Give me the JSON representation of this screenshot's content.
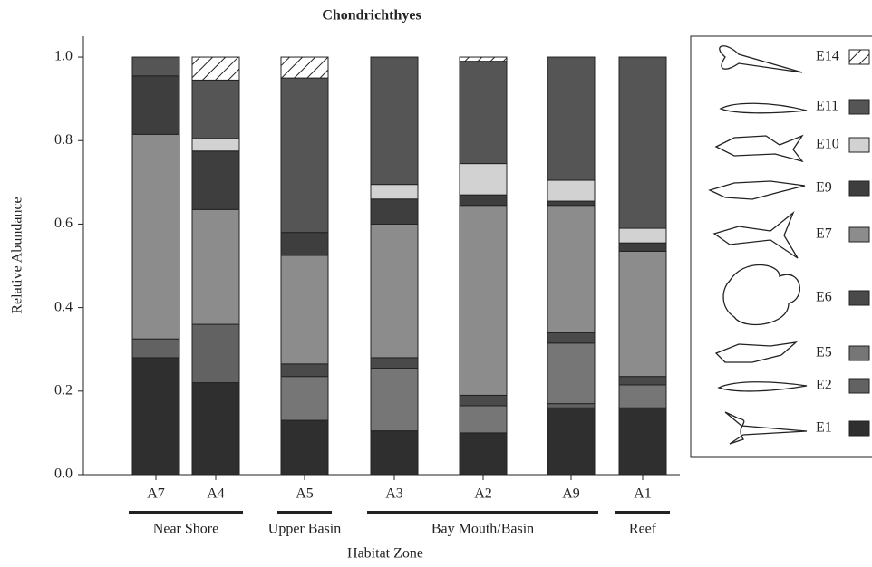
{
  "chart_data": {
    "type": "stacked_bar",
    "title": "Chondrichthyes",
    "x_label": "Habitat Zone",
    "y_label": "Relative Abundance",
    "categories": [
      "A7",
      "A4",
      "A5",
      "A3",
      "A2",
      "A9",
      "A1"
    ],
    "groups": [
      {
        "label": "Near Shore",
        "span": 2
      },
      {
        "label": "Upper Basin",
        "span": 1
      },
      {
        "label": "Bay Mouth/Basin",
        "span": 3
      },
      {
        "label": "Reef",
        "span": 1
      }
    ],
    "ylim": [
      0,
      1.05
    ],
    "yticks": [
      {
        "value": 0,
        "label": "0.0"
      },
      {
        "value": 0.2,
        "label": "0.2"
      },
      {
        "value": 0.4,
        "label": "0.4"
      },
      {
        "value": 0.6,
        "label": "0.6"
      },
      {
        "value": 0.8,
        "label": "0.8"
      },
      {
        "value": 1,
        "label": "1.0"
      }
    ],
    "legend": "right",
    "series": [
      {
        "name": "E1",
        "color": "#2f2f2f",
        "values": [
          0.28,
          0.22,
          0.13,
          0.105,
          0.1,
          0.16,
          0.16
        ]
      },
      {
        "name": "E2",
        "color": "#626262",
        "values": [
          0.045,
          0.14,
          0,
          0,
          0,
          0.01,
          0
        ]
      },
      {
        "name": "E5",
        "color": "#767676",
        "values": [
          0,
          0,
          0.105,
          0.15,
          0.065,
          0.145,
          0.055
        ]
      },
      {
        "name": "E6",
        "color": "#4a4a4a",
        "values": [
          0,
          0,
          0.03,
          0.025,
          0.025,
          0.025,
          0.02
        ]
      },
      {
        "name": "E7",
        "color": "#8c8c8c",
        "values": [
          0.49,
          0.275,
          0.26,
          0.32,
          0.455,
          0.305,
          0.3
        ]
      },
      {
        "name": "E9",
        "color": "#3e3e3e",
        "values": [
          0.14,
          0.14,
          0.055,
          0.06,
          0.025,
          0.01,
          0.02
        ]
      },
      {
        "name": "E10",
        "color": "#d2d2d2",
        "values": [
          0,
          0.03,
          0,
          0.035,
          0.075,
          0.05,
          0.035
        ]
      },
      {
        "name": "E11",
        "color": "#555555",
        "values": [
          0.045,
          0.14,
          0.37,
          0.305,
          0.245,
          0.295,
          0.41
        ]
      },
      {
        "name": "E14",
        "color": "#ffffff",
        "hatch": true,
        "values": [
          0,
          0.055,
          0.05,
          0,
          0.01,
          0,
          0
        ]
      }
    ]
  }
}
